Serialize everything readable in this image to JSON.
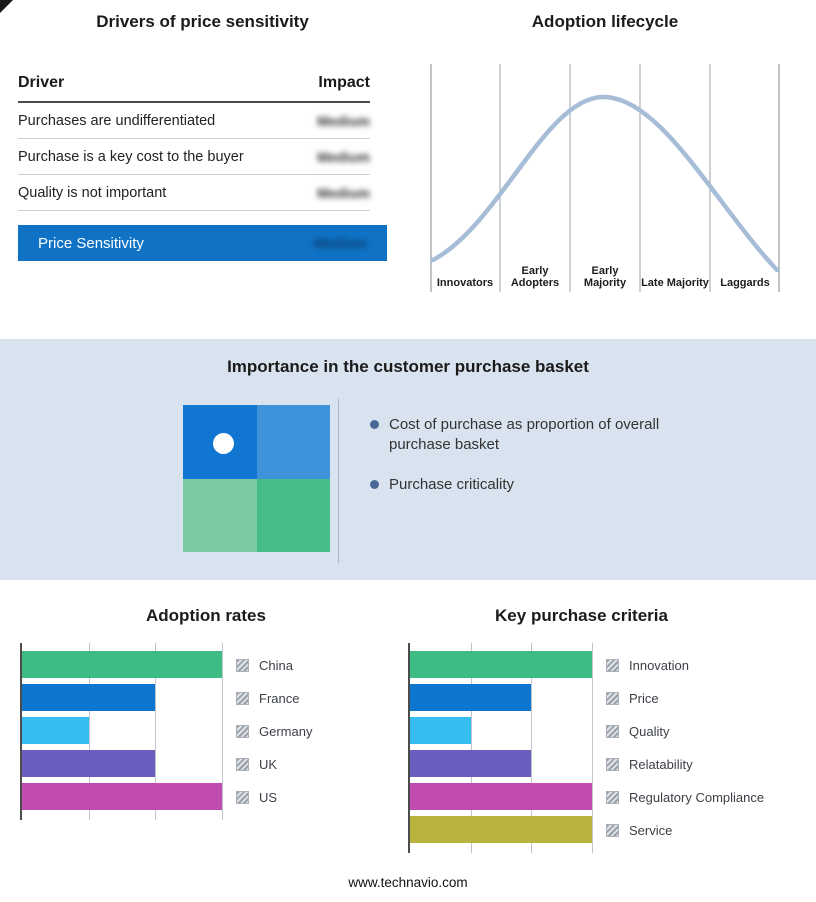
{
  "page": {
    "footer_text": "www.technavio.com"
  },
  "drivers_panel": {
    "title": "Drivers of price sensitivity",
    "header": {
      "driver": "Driver",
      "impact": "Impact"
    },
    "rows": [
      {
        "driver": "Purchases are undifferentiated",
        "impact": "Medium"
      },
      {
        "driver": "Purchase is a key cost to the buyer",
        "impact": "Medium"
      },
      {
        "driver": "Quality is not important",
        "impact": "Medium"
      }
    ],
    "summary_row": {
      "label": "Price Sensitivity",
      "impact": "Medium"
    },
    "accent_color": "#0f72c4"
  },
  "lifecycle_panel": {
    "title": "Adoption lifecycle",
    "stages": [
      "Innovators",
      "Early Adopters",
      "Early Majority",
      "Late Majority",
      "Laggards"
    ],
    "curve_color": "#a7bcd6"
  },
  "basket_panel": {
    "title": "Importance in the customer purchase basket",
    "bullets": [
      "Cost of purchase as proportion of overall purchase basket",
      "Purchase criticality"
    ],
    "quadrant_colors": {
      "top_left": "#1176d2",
      "top_right": "#3d92da",
      "bottom_left": "#7ccaa4",
      "bottom_right": "#46bc86"
    },
    "band_color": "#d9e3ef"
  },
  "chart_data": [
    {
      "type": "bar",
      "orientation": "horizontal",
      "title": "Adoption rates",
      "categories": [
        "China",
        "France",
        "Germany",
        "UK",
        "US"
      ],
      "values": [
        3,
        2,
        1,
        2,
        3
      ],
      "xlim": [
        0,
        3
      ],
      "colors": [
        "#3dbd84",
        "#0d76cf",
        "#35bdf2",
        "#6a5fbe",
        "#bf4cae"
      ],
      "gridlines": true,
      "legend_position": "right"
    },
    {
      "type": "bar",
      "orientation": "horizontal",
      "title": "Key purchase criteria",
      "categories": [
        "Innovation",
        "Price",
        "Quality",
        "Relatability",
        "Regulatory Compliance",
        "Service"
      ],
      "values": [
        3,
        2,
        1,
        2,
        3,
        3
      ],
      "xlim": [
        0,
        3
      ],
      "colors": [
        "#3dbd84",
        "#0d76cf",
        "#35bdf2",
        "#6a5fbe",
        "#bf4cae",
        "#b7b33d"
      ],
      "gridlines": true,
      "legend_position": "right"
    }
  ]
}
